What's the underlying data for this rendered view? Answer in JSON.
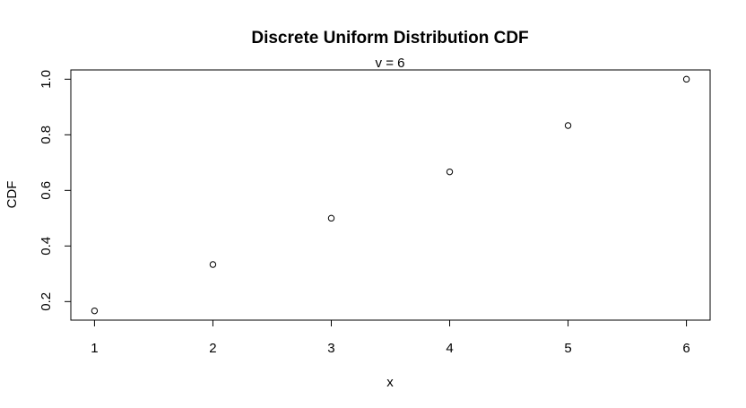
{
  "chart_data": {
    "type": "scatter",
    "title": "Discrete Uniform Distribution CDF",
    "subtitle": "v = 6",
    "xlabel": "x",
    "ylabel": "CDF",
    "x": [
      1,
      2,
      3,
      4,
      5,
      6
    ],
    "y": [
      0.1667,
      0.3333,
      0.5,
      0.6667,
      0.8333,
      1.0
    ],
    "xlim": [
      0.8,
      6.2
    ],
    "ylim": [
      0.1333,
      1.0333
    ],
    "xticks": [
      1,
      2,
      3,
      4,
      5,
      6
    ],
    "xtick_labels": [
      "1",
      "2",
      "3",
      "4",
      "5",
      "6"
    ],
    "yticks": [
      0.2,
      0.4,
      0.6,
      0.8,
      1.0
    ],
    "ytick_labels": [
      "0.2",
      "0.4",
      "0.6",
      "0.8",
      "1.0"
    ],
    "marker": "open-circle",
    "grid": false,
    "legend": "none",
    "colors": {
      "foreground": "#000000",
      "background": "#ffffff"
    }
  }
}
